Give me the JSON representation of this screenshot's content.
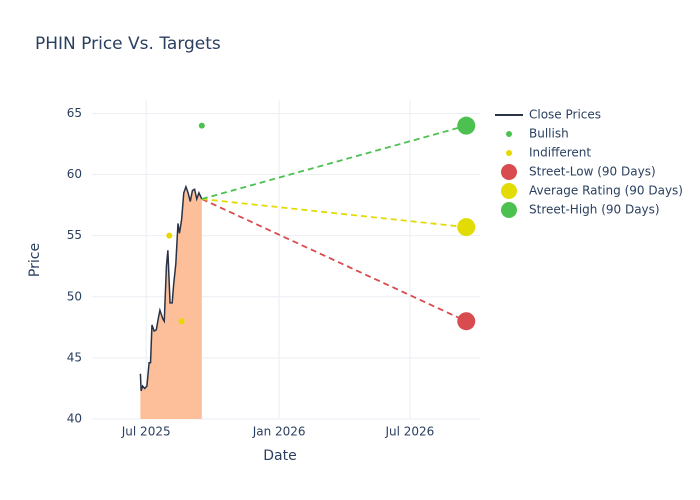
{
  "chart_data": {
    "type": "line",
    "title": "PHIN Price Vs. Targets",
    "x_label": "Date",
    "y_label": "Price",
    "xlim": [
      "2025-04-17",
      "2026-10-06"
    ],
    "xticks": [
      {
        "value": "2025-07-01",
        "label": "Jul 2025"
      },
      {
        "value": "2026-01-01",
        "label": "Jan 2026"
      },
      {
        "value": "2026-07-01",
        "label": "Jul 2026"
      }
    ],
    "ylim": [
      40,
      66.1
    ],
    "yticks": [
      40,
      45,
      50,
      55,
      60,
      65
    ],
    "grid": true,
    "legend": "right",
    "series": [
      {
        "name": "Close Prices",
        "mode": "line",
        "fill": "#fdbf99",
        "color": "#2a3346",
        "x": [
          "2025-06-23",
          "2025-06-24",
          "2025-06-26",
          "2025-06-29",
          "2025-07-02",
          "2025-07-05",
          "2025-07-07",
          "2025-07-09",
          "2025-07-12",
          "2025-07-15",
          "2025-07-18",
          "2025-07-20",
          "2025-07-24",
          "2025-07-26",
          "2025-07-29",
          "2025-07-31",
          "2025-08-03",
          "2025-08-06",
          "2025-08-08",
          "2025-08-11",
          "2025-08-14",
          "2025-08-16",
          "2025-08-19",
          "2025-08-22",
          "2025-08-25",
          "2025-08-28",
          "2025-08-31",
          "2025-09-03",
          "2025-09-06",
          "2025-09-09",
          "2025-09-12",
          "2025-09-16"
        ],
        "values": [
          43.7,
          42.3,
          42.7,
          42.5,
          42.7,
          44.6,
          44.6,
          47.7,
          47.2,
          47.3,
          48.3,
          48.9,
          48.2,
          48.0,
          52.5,
          53.8,
          49.5,
          49.5,
          51.0,
          52.7,
          56.0,
          55.2,
          56.3,
          58.5,
          59.0,
          58.5,
          57.8,
          58.7,
          58.8,
          58.0,
          58.5,
          58.0
        ]
      },
      {
        "name": "Bullish",
        "mode": "dot",
        "color": "#4cc150",
        "x": [
          "2025-09-16"
        ],
        "values": [
          64
        ]
      },
      {
        "name": "Indifferent",
        "mode": "dot",
        "color": "#e6d800",
        "x": [
          "2025-08-02",
          "2025-08-19"
        ],
        "values": [
          55,
          48
        ]
      },
      {
        "name": "Street-Low (90 Days)",
        "mode": "big",
        "color": "#d84b4f",
        "x": [
          "2026-09-17"
        ],
        "values": [
          48
        ]
      },
      {
        "name": "Average Rating (90 Days)",
        "mode": "big",
        "color": "#e2dc04",
        "x": [
          "2026-09-17"
        ],
        "values": [
          55.7
        ]
      },
      {
        "name": "Street-High (90 Days)",
        "mode": "big",
        "color": "#4cc150",
        "x": [
          "2026-09-17"
        ],
        "values": [
          64
        ]
      }
    ],
    "target_lines": [
      {
        "color": "#d84b4f",
        "x": [
          "2025-09-16",
          "2026-09-17"
        ],
        "values": [
          58.0,
          48
        ]
      },
      {
        "color": "#e2dc04",
        "x": [
          "2025-09-16",
          "2026-09-17"
        ],
        "values": [
          58.0,
          55.7
        ]
      },
      {
        "color": "#4cc150",
        "x": [
          "2025-09-16",
          "2026-09-17"
        ],
        "values": [
          58.0,
          64
        ]
      }
    ]
  }
}
